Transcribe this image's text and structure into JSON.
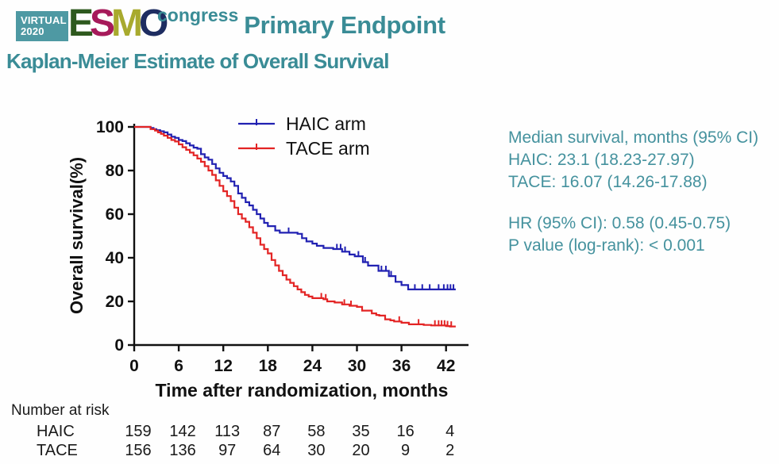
{
  "header": {
    "badge": {
      "line1": "VIRTUAL",
      "line2": "2020",
      "bg_color": "#4e99a3"
    },
    "esmo": {
      "letters": [
        {
          "char": "E",
          "color": "#2e591e"
        },
        {
          "char": "S",
          "color": "#a61a5a"
        },
        {
          "char": "M",
          "color": "#a8aa2e"
        },
        {
          "char": "O",
          "color": "#1e2d61"
        }
      ],
      "congress": "congress",
      "congress_color": "#3a8c96"
    },
    "title": "Primary Endpoint",
    "subtitle": "Kaplan-Meier Estimate of Overall Survival",
    "accent_color": "#3a8c96"
  },
  "chart_data": {
    "type": "line",
    "subtype": "kaplan-meier-step",
    "title": "",
    "xlabel": "Time after randomization, months",
    "ylabel": "Overall survival(%)",
    "xlim": [
      0,
      43.5
    ],
    "ylim": [
      0,
      100
    ],
    "xticks": [
      0,
      6,
      12,
      18,
      24,
      30,
      36,
      42
    ],
    "yticks": [
      0,
      20,
      40,
      60,
      80,
      100
    ],
    "grid": false,
    "legend_position": "top-center-inside",
    "axis_color": "#111111",
    "series": [
      {
        "name": "HAIC arm",
        "color": "#2121b2",
        "points": [
          [
            0,
            100
          ],
          [
            2.2,
            99.5
          ],
          [
            2.6,
            99
          ],
          [
            3,
            98.5
          ],
          [
            3.5,
            98
          ],
          [
            4,
            97.5
          ],
          [
            4.5,
            96.5
          ],
          [
            5,
            95.5
          ],
          [
            5.5,
            95
          ],
          [
            6,
            94
          ],
          [
            6.5,
            93.5
          ],
          [
            7,
            92.5
          ],
          [
            7.5,
            91.5
          ],
          [
            8,
            90.5
          ],
          [
            8.5,
            90
          ],
          [
            9,
            87.5
          ],
          [
            9.5,
            86
          ],
          [
            10,
            85
          ],
          [
            10.5,
            83
          ],
          [
            11,
            81
          ],
          [
            11.5,
            79
          ],
          [
            12,
            77.5
          ],
          [
            12.5,
            76.5
          ],
          [
            13,
            75
          ],
          [
            13.5,
            73
          ],
          [
            14,
            69.5
          ],
          [
            14.5,
            67.5
          ],
          [
            15,
            65.5
          ],
          [
            15.5,
            64
          ],
          [
            16,
            62
          ],
          [
            16.5,
            60
          ],
          [
            17,
            58
          ],
          [
            17.5,
            56
          ],
          [
            18,
            54.5
          ],
          [
            19,
            52.5
          ],
          [
            19.6,
            51.5
          ],
          [
            22,
            51
          ],
          [
            22.6,
            49
          ],
          [
            23.2,
            47.5
          ],
          [
            24,
            46.5
          ],
          [
            24.6,
            45.5
          ],
          [
            25.5,
            44.5
          ],
          [
            26.8,
            44
          ],
          [
            28,
            42.8
          ],
          [
            29,
            41.5
          ],
          [
            29.7,
            40.7
          ],
          [
            30.8,
            38
          ],
          [
            31.5,
            36.4
          ],
          [
            32.9,
            34
          ],
          [
            34.3,
            31.6
          ],
          [
            35.2,
            29
          ],
          [
            36,
            27.5
          ],
          [
            36.9,
            25.5
          ],
          [
            43.3,
            25.5
          ]
        ],
        "censor_ticks": [
          20.8,
          27.3,
          27.8,
          28.4,
          30.2,
          31.1,
          33.3,
          33.9,
          34.6,
          37.8,
          38.8,
          39.8,
          41.0,
          41.7,
          42.2,
          42.6,
          43.0
        ]
      },
      {
        "name": "TACE arm",
        "color": "#e32424",
        "points": [
          [
            0,
            100
          ],
          [
            2.2,
            99
          ],
          [
            2.8,
            98.3
          ],
          [
            3.2,
            97.5
          ],
          [
            3.6,
            96.8
          ],
          [
            4,
            96
          ],
          [
            4.5,
            95
          ],
          [
            5,
            94
          ],
          [
            5.5,
            93.3
          ],
          [
            6,
            92
          ],
          [
            6.5,
            90.7
          ],
          [
            7,
            89.5
          ],
          [
            7.5,
            88.2
          ],
          [
            8,
            87
          ],
          [
            8.5,
            85.5
          ],
          [
            9,
            84
          ],
          [
            9.5,
            82
          ],
          [
            10,
            80
          ],
          [
            10.5,
            78
          ],
          [
            11,
            75.5
          ],
          [
            11.5,
            73
          ],
          [
            12,
            70.5
          ],
          [
            12.5,
            68.3
          ],
          [
            13,
            66
          ],
          [
            13.5,
            63
          ],
          [
            14,
            60
          ],
          [
            14.5,
            58
          ],
          [
            15,
            56.5
          ],
          [
            15.5,
            54
          ],
          [
            16,
            51.5
          ],
          [
            16.5,
            49
          ],
          [
            17,
            46
          ],
          [
            17.5,
            44
          ],
          [
            18,
            42
          ],
          [
            18.5,
            39
          ],
          [
            19,
            36.5
          ],
          [
            19.5,
            34
          ],
          [
            20,
            32
          ],
          [
            20.5,
            30
          ],
          [
            21,
            28.5
          ],
          [
            21.5,
            27
          ],
          [
            22,
            25.5
          ],
          [
            22.5,
            24.2
          ],
          [
            23,
            23
          ],
          [
            23.5,
            22.2
          ],
          [
            24,
            21.5
          ],
          [
            25.5,
            21
          ],
          [
            26,
            20
          ],
          [
            27,
            19.5
          ],
          [
            28,
            18.6
          ],
          [
            29,
            18
          ],
          [
            30,
            17.5
          ],
          [
            30.7,
            15.8
          ],
          [
            32,
            14.5
          ],
          [
            32.6,
            13.8
          ],
          [
            33,
            13.5
          ],
          [
            33.8,
            11.8
          ],
          [
            34.5,
            11.3
          ],
          [
            35,
            10.8
          ],
          [
            36,
            10.2
          ],
          [
            37,
            9.5
          ],
          [
            39,
            9.2
          ],
          [
            40,
            9
          ],
          [
            42,
            8.7
          ],
          [
            42.5,
            8.5
          ],
          [
            43.3,
            8.5
          ]
        ],
        "censor_ticks": [
          25.2,
          25.8,
          28.3,
          29.2,
          35.7,
          38.3,
          40.5,
          41.0,
          41.4,
          41.8,
          42.2,
          42.7
        ]
      }
    ]
  },
  "stats_panel": {
    "color": "#45929e",
    "lines": [
      "Median survival, months (95% CI)",
      "HAIC: 23.1 (18.23-27.97)",
      "TACE: 16.07 (14.26-17.88)",
      "",
      "HR (95% CI): 0.58 (0.45-0.75)",
      "P value (log-rank): < 0.001"
    ]
  },
  "risk_table": {
    "label": "Number at risk",
    "months": [
      0,
      6,
      12,
      18,
      24,
      30,
      36,
      42
    ],
    "rows": [
      {
        "name": "HAIC",
        "values": [
          "159",
          "142",
          "113",
          "87",
          "58",
          "35",
          "16",
          "4"
        ]
      },
      {
        "name": "TACE",
        "values": [
          "156",
          "136",
          "97",
          "64",
          "30",
          "20",
          "9",
          "2"
        ]
      }
    ]
  }
}
